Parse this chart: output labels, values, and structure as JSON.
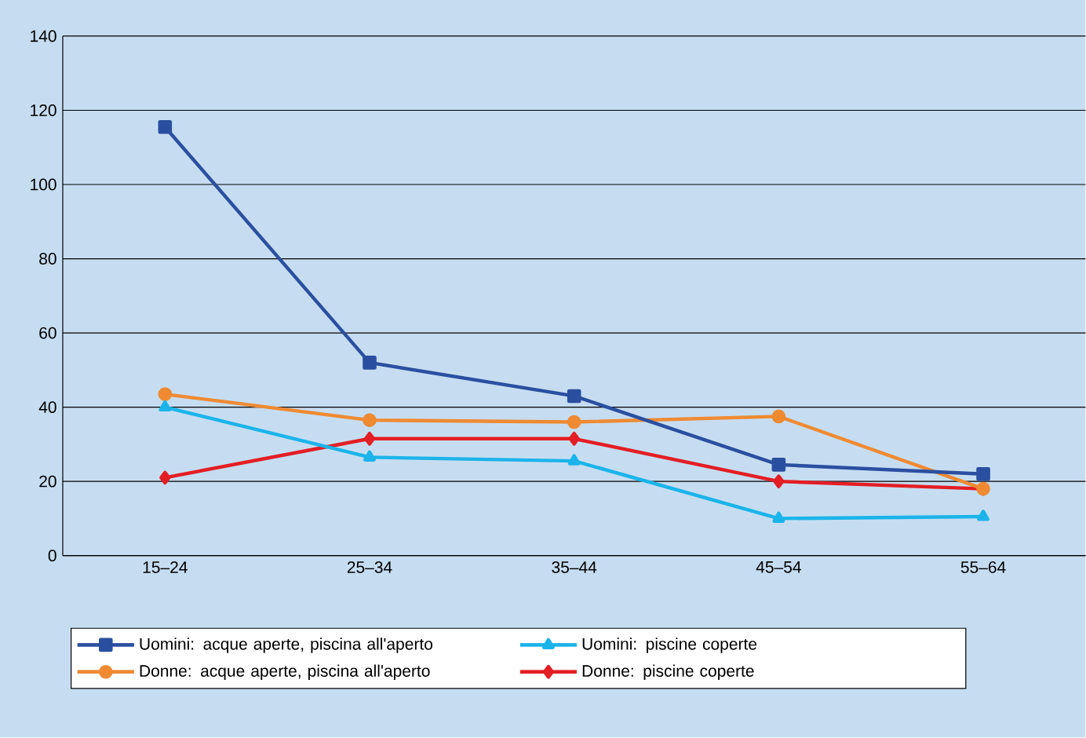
{
  "chart_data": {
    "type": "line",
    "categories": [
      "15–24",
      "25–34",
      "35–44",
      "45–54",
      "55–64"
    ],
    "series": [
      {
        "name": "Uomini: acque aperte, piscina all'aperto",
        "color": "#2b4fa0",
        "marker": "square",
        "values": [
          115.5,
          52,
          43,
          24.5,
          22
        ]
      },
      {
        "name": "Uomini: piscine coperte",
        "color": "#1bb4ea",
        "marker": "triangle",
        "values": [
          40,
          26.5,
          25.5,
          10,
          10.5
        ]
      },
      {
        "name": "Donne: acque aperte, piscina all'aperto",
        "color": "#ef8a32",
        "marker": "circle",
        "values": [
          43.5,
          36.5,
          36,
          37.5,
          18
        ]
      },
      {
        "name": "Donne: piscine coperte",
        "color": "#e31e24",
        "marker": "diamond",
        "values": [
          21,
          31.5,
          31.5,
          20,
          18
        ]
      }
    ],
    "ylim": [
      0,
      140
    ],
    "yticks": [
      0,
      20,
      40,
      60,
      80,
      100,
      120,
      140
    ],
    "grid": "y",
    "legend": "bottom"
  }
}
